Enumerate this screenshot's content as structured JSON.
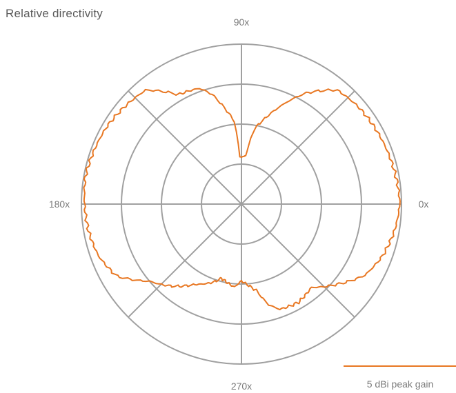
{
  "title": "Relative directivity",
  "colors": {
    "grid": "#a0a0a0",
    "series": "#e87722",
    "text": "#7a7a7a"
  },
  "chart_data": {
    "type": "polar",
    "title": "Relative directivity",
    "angle_unit": "degrees",
    "angle_tick_labels": [
      {
        "angle": 0,
        "label": "0x"
      },
      {
        "angle": 90,
        "label": "90x"
      },
      {
        "angle": 180,
        "label": "180x"
      },
      {
        "angle": 270,
        "label": "270x"
      }
    ],
    "radial_rings": 4,
    "grid": true,
    "legend_position": "bottom-right",
    "series": [
      {
        "name": "5 dBi peak gain",
        "angles": [
          0,
          10,
          20,
          30,
          40,
          50,
          60,
          70,
          75,
          80,
          85,
          88,
          90,
          92,
          95,
          100,
          105,
          110,
          120,
          130,
          140,
          150,
          160,
          170,
          180,
          190,
          200,
          210,
          220,
          230,
          240,
          250,
          255,
          260,
          265,
          270,
          275,
          280,
          285,
          290,
          300,
          310,
          320,
          330,
          340,
          350,
          360
        ],
        "r": [
          0.99,
          0.98,
          0.97,
          0.96,
          0.95,
          0.93,
          0.8,
          0.63,
          0.55,
          0.48,
          0.3,
          0.3,
          0.29,
          0.3,
          0.52,
          0.61,
          0.71,
          0.77,
          0.79,
          0.93,
          0.95,
          0.97,
          0.98,
          0.99,
          0.98,
          0.97,
          0.95,
          0.9,
          0.75,
          0.67,
          0.58,
          0.52,
          0.48,
          0.5,
          0.52,
          0.48,
          0.51,
          0.55,
          0.65,
          0.7,
          0.71,
          0.68,
          0.78,
          0.89,
          0.94,
          0.97,
          0.99
        ]
      }
    ]
  }
}
